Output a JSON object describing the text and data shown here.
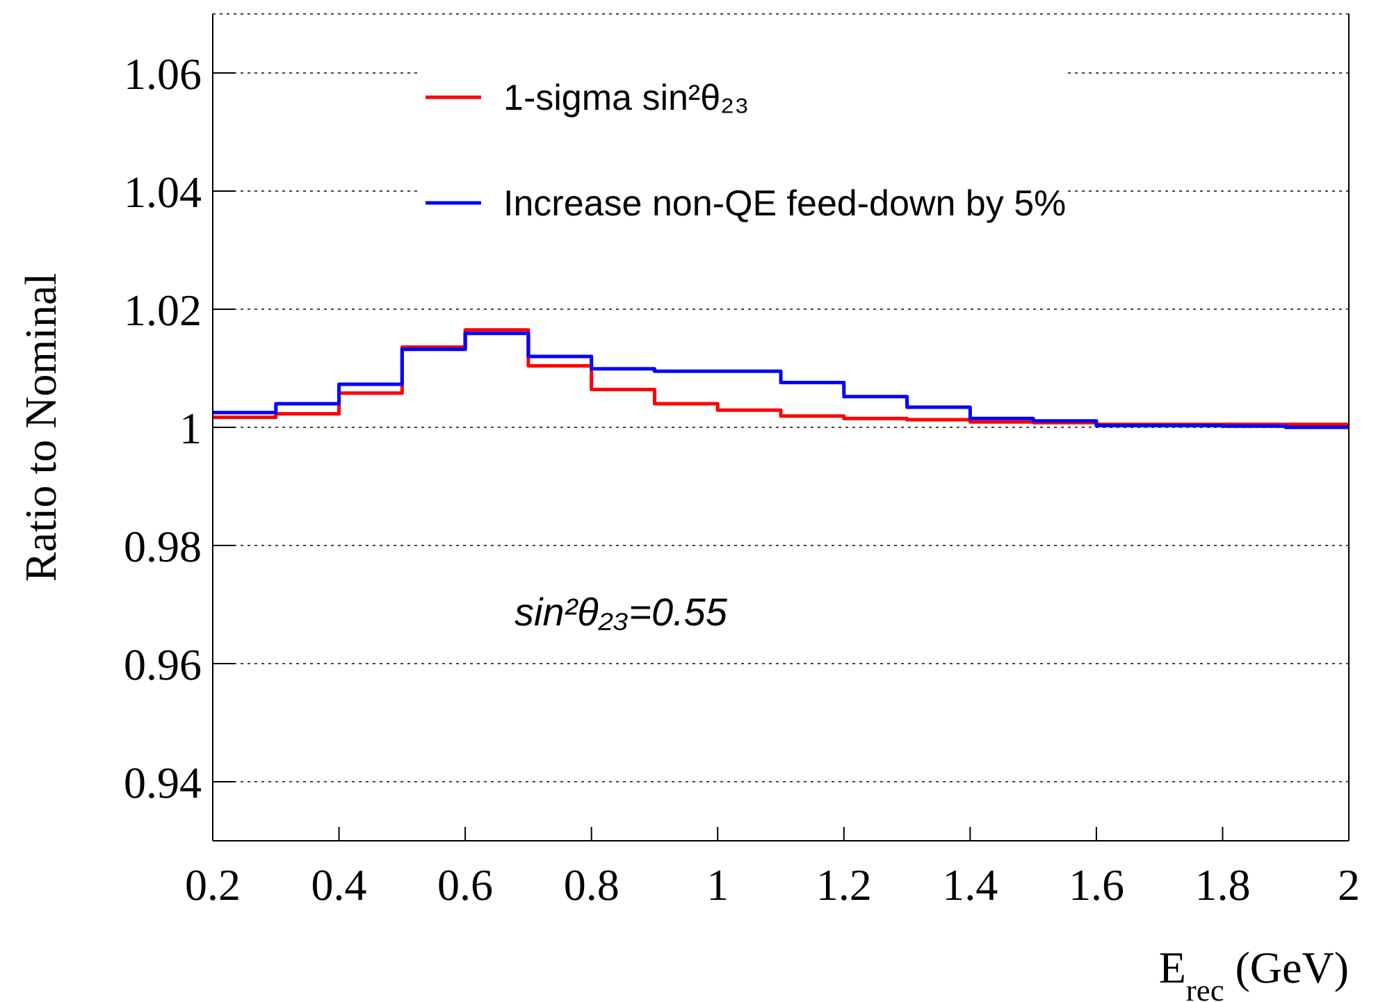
{
  "chart_data": {
    "type": "histogram",
    "xlabel": "E$_{rec}$ (GeV)",
    "ylabel": "Ratio to Nominal",
    "bins": [
      0.2,
      0.3,
      0.4,
      0.5,
      0.6,
      0.7,
      0.8,
      0.9,
      1.0,
      1.1,
      1.2,
      1.3,
      1.4,
      1.5,
      1.6,
      1.7,
      1.8,
      1.9,
      2.0
    ],
    "series": [
      {
        "name": "1-sigma sin²θ₂₃",
        "color": "#ff0000",
        "values": [
          1.0017,
          1.0023,
          1.0058,
          1.0136,
          1.0165,
          1.0104,
          1.0064,
          1.004,
          1.0029,
          1.0019,
          1.0015,
          1.0013,
          1.0009,
          1.0008,
          1.0005,
          1.0005,
          1.0005,
          1.0005
        ]
      },
      {
        "name": "Increase non-QE feed-down by 5%",
        "color": "#0000ff",
        "values": [
          1.0025,
          1.004,
          1.0073,
          1.0132,
          1.0159,
          1.012,
          1.0099,
          1.0095,
          1.0095,
          1.0076,
          1.0052,
          1.0034,
          1.0015,
          1.0011,
          1.0003,
          1.0003,
          1.0002,
          1.0
        ]
      }
    ],
    "annotations": [
      "sin²θ₂₃=0.55"
    ],
    "xlim": [
      0.2,
      2
    ],
    "xticks": [
      0.2,
      0.4,
      0.6,
      0.8,
      1,
      1.2,
      1.4,
      1.6,
      1.8,
      2
    ],
    "ylim": [
      0.93,
      1.07
    ],
    "yticks": [
      0.94,
      0.96,
      0.98,
      1,
      1.02,
      1.04,
      1.06
    ],
    "grid": "y",
    "legend": "top"
  }
}
